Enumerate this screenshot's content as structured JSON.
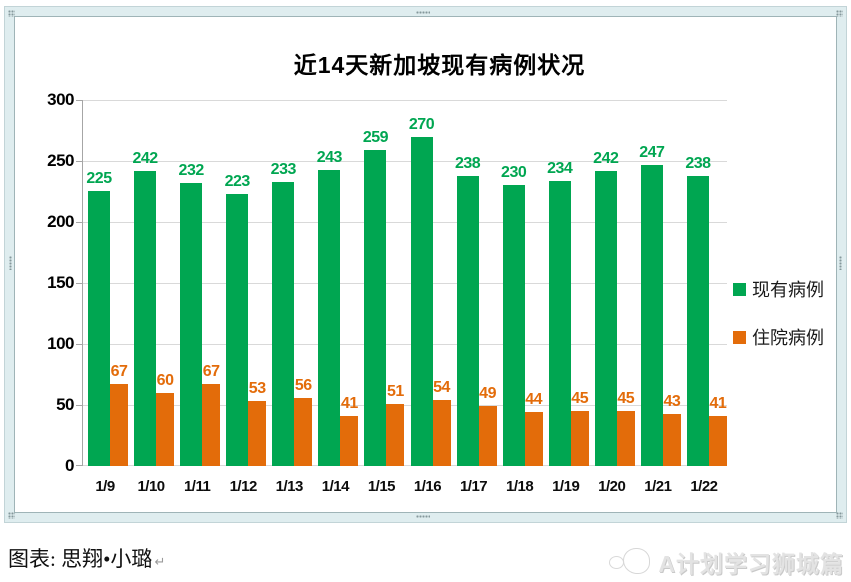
{
  "title": "近14天新加坡现有病例状况",
  "chart_data": {
    "type": "bar",
    "title": "近14天新加坡现有病例状况",
    "categories": [
      "1/9",
      "1/10",
      "1/11",
      "1/12",
      "1/13",
      "1/14",
      "1/15",
      "1/16",
      "1/17",
      "1/18",
      "1/19",
      "1/20",
      "1/21",
      "1/22"
    ],
    "series": [
      {
        "name": "现有病例",
        "color": "#00A651",
        "values": [
          225,
          242,
          232,
          223,
          233,
          243,
          259,
          270,
          238,
          230,
          234,
          242,
          247,
          238
        ]
      },
      {
        "name": "住院病例",
        "color": "#E36C0A",
        "values": [
          67,
          60,
          67,
          53,
          56,
          41,
          51,
          54,
          49,
          44,
          45,
          45,
          43,
          41
        ]
      }
    ],
    "ylim": [
      0,
      300
    ],
    "yticks": [
      0,
      50,
      100,
      150,
      200,
      250,
      300
    ],
    "xlabel": "",
    "ylabel": "",
    "grid": true,
    "legend_position": "right",
    "data_labels": true
  },
  "legend": {
    "items": [
      {
        "label": "现有病例",
        "color": "#00A651"
      },
      {
        "label": "住院病例",
        "color": "#E36C0A"
      }
    ]
  },
  "footer": {
    "credit": "图表: 思翔•小璐",
    "return_mark": "↵"
  },
  "watermark": {
    "text": "A计划学习狮城篇"
  },
  "colors": {
    "bar_green": "#00A651",
    "bar_orange": "#E36C0A",
    "gridline": "#D9D9D9",
    "axis": "#A6A6A6",
    "frame": "#DFEDEF"
  }
}
